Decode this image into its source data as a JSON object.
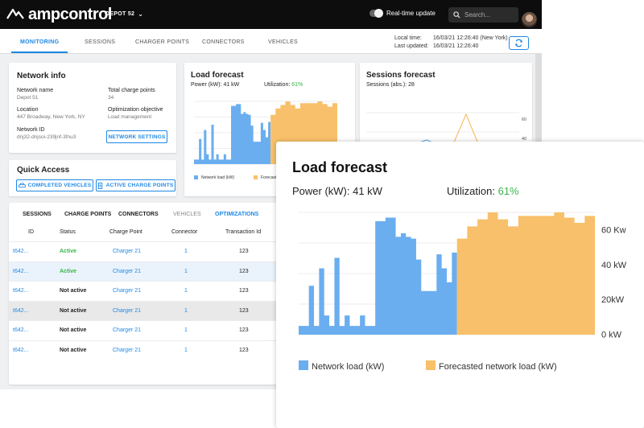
{
  "app": {
    "brand": "ampcontrol",
    "depot_label": "DEPOT 52",
    "realtime_label": "Real-time update",
    "search_placeholder": "Search..."
  },
  "nav": {
    "tabs": [
      "MONITORING",
      "SESSIONS",
      "CHARGER POINTS",
      "CONNECTORS",
      "VEHICLES"
    ],
    "local_time_label": "Local time:",
    "local_time_value": "16/03/21 12:26:40 (New York)",
    "last_updated_label": "Last updated:",
    "last_updated_value": "16/03/21 12:26:40"
  },
  "network_info": {
    "title": "Network info",
    "name_label": "Network name",
    "name_value": "Depot 51",
    "total_label": "Total charge points",
    "total_value": "34",
    "location_label": "Location",
    "location_value": "447 Broadway, New York, NY",
    "objective_label": "Optimization objective",
    "objective_value": "Load management",
    "id_label": "Network ID",
    "id_value": "dnj32-dnjsoi-239jnf-3fnu3",
    "settings_button": "NETWORK SETTINGS"
  },
  "quick_access": {
    "title": "Quick Access",
    "btn_vehicles": "COMPLETED VEHICLES",
    "btn_chargers": "ACTIVE CHARGE POINTS"
  },
  "table": {
    "tabs": [
      "SESSIONS",
      "CHARGE POINTS",
      "CONNECTORS",
      "VEHICLES",
      "OPTIMIZATIONS"
    ],
    "headers": [
      "ID",
      "Status",
      "Charge Point",
      "Connector",
      "Transaction Id"
    ],
    "rows": [
      {
        "id": "t642...",
        "status": "Active",
        "charge_point": "Charger 21",
        "connector": "1",
        "transaction": "123"
      },
      {
        "id": "t642...",
        "status": "Active",
        "charge_point": "Charger 21",
        "connector": "1",
        "transaction": "123"
      },
      {
        "id": "t642...",
        "status": "Not active",
        "charge_point": "Charger 21",
        "connector": "1",
        "transaction": "123"
      },
      {
        "id": "t642...",
        "status": "Not active",
        "charge_point": "Charger 21",
        "connector": "1",
        "transaction": "123"
      },
      {
        "id": "t642...",
        "status": "Not active",
        "charge_point": "Charger 21",
        "connector": "1",
        "transaction": "123"
      },
      {
        "id": "t642...",
        "status": "Not active",
        "charge_point": "Charger 21",
        "connector": "1",
        "transaction": "123"
      }
    ]
  },
  "load_forecast_small": {
    "title": "Load forecast",
    "power_label": "Power (kW): 41 kW",
    "util_label": "Utilization:",
    "util_value": "61%",
    "legend_network": "Network load (kW)",
    "legend_forecast": "Forecasted network load (kW)"
  },
  "sessions_forecast": {
    "title": "Sessions forecast",
    "sub": "Sessions (abs.): 28",
    "ticks": [
      "60",
      "40"
    ]
  },
  "zoom": {
    "title": "Load forecast",
    "power_label": "Power (kW): 41 kW",
    "util_label": "Utilization:",
    "util_value": "61%",
    "legend_network": "Network load (kW)",
    "legend_forecast": "Forecasted network load (kW)"
  },
  "colors": {
    "accent": "#1e88e5",
    "network": "#6aaef0",
    "forecast": "#f8c06a",
    "active": "#3bb54a"
  },
  "chart_data": {
    "type": "area",
    "yticks": [
      "60 Kw",
      "40 kW",
      "20kW",
      "0 kW"
    ],
    "ylim": [
      0,
      70
    ],
    "series": [
      {
        "name": "Network load (kW)",
        "values": [
          5,
          5,
          28,
          5,
          38,
          11,
          5,
          44,
          5,
          11,
          5,
          5,
          11,
          5,
          5,
          65,
          65,
          67,
          67,
          56,
          58,
          56,
          55,
          43,
          25,
          25,
          25,
          46,
          38,
          30,
          47
        ]
      },
      {
        "name": "Forecasted network load (kW)",
        "values": [
          55,
          55,
          62,
          62,
          66,
          66,
          70,
          70,
          66,
          66,
          62,
          62,
          68,
          68,
          68,
          68,
          68,
          68,
          68,
          70,
          70,
          67,
          67,
          64,
          64,
          68,
          68
        ]
      }
    ]
  }
}
